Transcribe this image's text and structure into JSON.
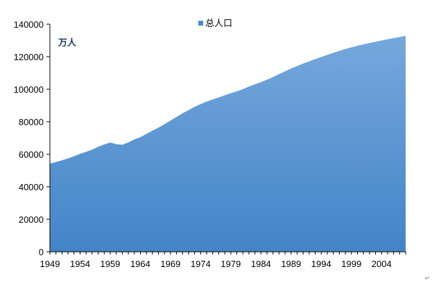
{
  "chart_data": {
    "type": "area",
    "series": [
      {
        "name": "总人口",
        "x": [
          1949,
          1950,
          1951,
          1952,
          1953,
          1954,
          1955,
          1956,
          1957,
          1958,
          1959,
          1960,
          1961,
          1962,
          1963,
          1964,
          1965,
          1966,
          1967,
          1968,
          1969,
          1970,
          1971,
          1972,
          1973,
          1974,
          1975,
          1976,
          1977,
          1978,
          1979,
          1980,
          1981,
          1982,
          1983,
          1984,
          1985,
          1986,
          1987,
          1988,
          1989,
          1990,
          1991,
          1992,
          1993,
          1994,
          1995,
          1996,
          1997,
          1998,
          1999,
          2000,
          2001,
          2002,
          2003,
          2004,
          2005,
          2006,
          2007,
          2008
        ],
        "values": [
          54167,
          55196,
          56300,
          57482,
          58796,
          60266,
          61465,
          62828,
          64653,
          65994,
          67207,
          66207,
          65859,
          67296,
          69172,
          70499,
          72538,
          74542,
          76368,
          78534,
          80671,
          82992,
          85229,
          87177,
          89211,
          90859,
          92420,
          93717,
          94974,
          96259,
          97542,
          98705,
          100072,
          101654,
          103008,
          104357,
          105851,
          107507,
          109300,
          111026,
          112704,
          114333,
          115823,
          117171,
          118517,
          119850,
          121121,
          122389,
          123626,
          124761,
          125786,
          126743,
          127627,
          128453,
          129227,
          129988,
          130756,
          131448,
          132129,
          132802
        ]
      }
    ],
    "xticks": [
      "1949",
      "1954",
      "1959",
      "1964",
      "1969",
      "1974",
      "1979",
      "1984",
      "1989",
      "1994",
      "1999",
      "2004"
    ],
    "yticks": [
      "0",
      "20000",
      "40000",
      "60000",
      "80000",
      "100000",
      "120000",
      "140000"
    ],
    "ylim": [
      0,
      140000
    ],
    "xlim": [
      1949,
      2008
    ],
    "unit_label": "万人",
    "legend_position": "top-center",
    "grid": false,
    "colors": {
      "fill_top": "#76a8dc",
      "fill_bottom": "#4384c8",
      "axis": "#000000",
      "legend_marker": "#4a8ad0"
    }
  }
}
